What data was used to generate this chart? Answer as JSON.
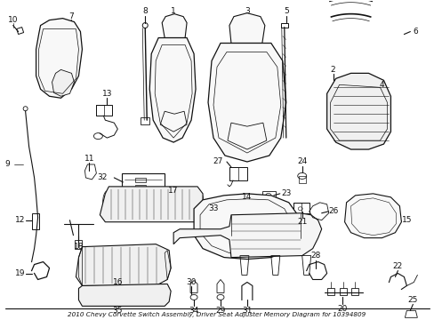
{
  "title": "2010 Chevy Corvette Switch Assembly, Driver Seat Adjuster Memory Diagram for 10394809",
  "bg_color": "#ffffff",
  "line_color": "#111111",
  "figsize": [
    4.89,
    3.6
  ],
  "dpi": 100
}
